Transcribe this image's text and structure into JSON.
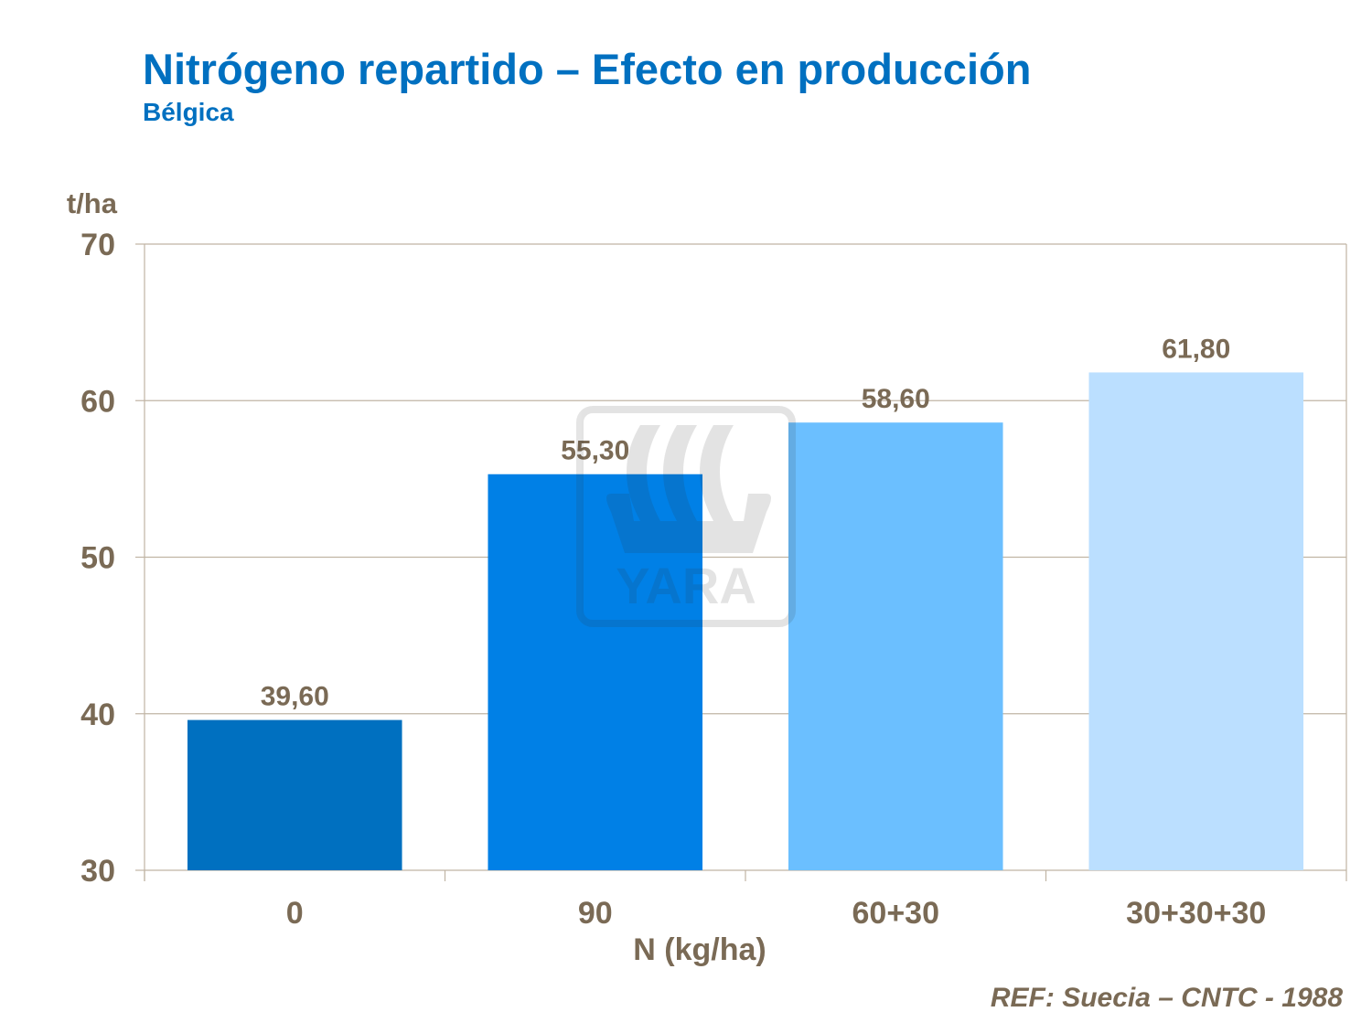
{
  "title": "Nitrógeno repartido – Efecto en producción",
  "subtitle": "Bélgica",
  "reference": "REF: Suecia – CNTC - 1988",
  "watermark": "YARA",
  "chart_data": {
    "type": "bar",
    "title": "Nitrógeno repartido – Efecto en producción",
    "subtitle": "Bélgica",
    "xlabel": "N (kg/ha)",
    "ylabel": "t/ha",
    "categories": [
      "0",
      "90",
      "60+30",
      "30+30+30"
    ],
    "values": [
      39.6,
      55.3,
      58.6,
      61.8
    ],
    "data_labels": [
      "39,60",
      "55,30",
      "58,60",
      "61,80"
    ],
    "colors": [
      "#0070c0",
      "#0080e6",
      "#6bbfff",
      "#bbdfff"
    ],
    "ylim": [
      30,
      70
    ],
    "yticks": [
      30,
      40,
      50,
      60,
      70
    ],
    "grid": true,
    "legend": "none",
    "text_color": "#7a6a55",
    "grid_color": "#c0b4a4"
  }
}
